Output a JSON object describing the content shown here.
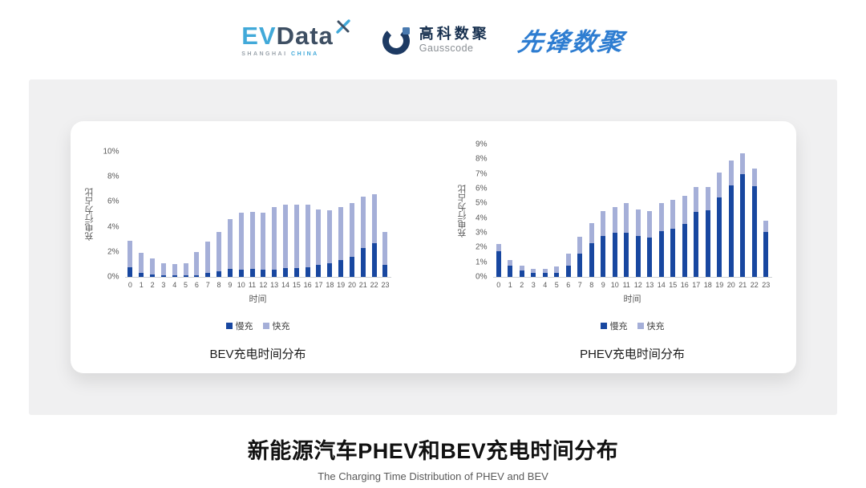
{
  "header": {
    "logos": {
      "evdata": {
        "accent_part": "EV",
        "dark_part": "Data",
        "tagline_left": "SHANGHAI",
        "tagline_right": "CHINA",
        "accent_color": "#41a9d9",
        "dark_color": "#3e4f63"
      },
      "gausscode": {
        "cn": "高科数聚",
        "en": "Gausscode",
        "mark_color": "#1d3a63",
        "accent_color": "#4a7ab0",
        "cn_color": "#17304f"
      },
      "pioneer": {
        "text": "先锋数聚",
        "color": "#2e7dd1"
      }
    }
  },
  "chart_data": [
    {
      "type": "bar",
      "stacked": true,
      "title": "BEV充电时间分布",
      "ylabel": "充电行为占比",
      "xlabel": "时间",
      "ymax": 10,
      "ytick_step": 2,
      "ytick_suffix": "%",
      "grid": false,
      "legend_position": "bottom",
      "categories": [
        "0",
        "1",
        "2",
        "3",
        "4",
        "5",
        "6",
        "7",
        "8",
        "9",
        "10",
        "11",
        "12",
        "13",
        "14",
        "15",
        "16",
        "17",
        "18",
        "19",
        "20",
        "21",
        "22",
        "23"
      ],
      "series": [
        {
          "name": "慢充",
          "color": "#1847a0",
          "values": [
            0.75,
            0.35,
            0.2,
            0.15,
            0.1,
            0.1,
            0.15,
            0.35,
            0.45,
            0.65,
            0.6,
            0.65,
            0.6,
            0.6,
            0.7,
            0.7,
            0.8,
            0.95,
            1.1,
            1.35,
            1.6,
            2.3,
            2.7,
            0.95
          ]
        },
        {
          "name": "快充",
          "color": "#a5afd8",
          "values": [
            2.15,
            1.55,
            1.3,
            0.95,
            0.9,
            1.0,
            1.85,
            2.45,
            3.15,
            3.95,
            4.5,
            4.55,
            4.5,
            5.0,
            5.1,
            5.05,
            5.0,
            4.45,
            4.2,
            4.25,
            4.3,
            4.1,
            3.9,
            2.65
          ]
        }
      ]
    },
    {
      "type": "bar",
      "stacked": true,
      "title": "PHEV充电时间分布",
      "ylabel": "充电行为占比",
      "xlabel": "时间",
      "ymax": 9,
      "ytick_step": 1,
      "ytick_suffix": "%",
      "grid": false,
      "legend_position": "bottom",
      "categories": [
        "0",
        "1",
        "2",
        "3",
        "4",
        "5",
        "6",
        "7",
        "8",
        "9",
        "10",
        "11",
        "12",
        "13",
        "14",
        "15",
        "16",
        "17",
        "18",
        "19",
        "20",
        "21",
        "22",
        "23"
      ],
      "series": [
        {
          "name": "慢充",
          "color": "#1847a0",
          "values": [
            1.75,
            0.75,
            0.45,
            0.25,
            0.25,
            0.3,
            0.75,
            1.6,
            2.3,
            2.8,
            3.0,
            3.0,
            2.8,
            2.65,
            3.1,
            3.3,
            3.6,
            4.4,
            4.55,
            5.4,
            6.2,
            7.0,
            6.15,
            3.05
          ]
        },
        {
          "name": "快充",
          "color": "#a5afd8",
          "values": [
            0.5,
            0.4,
            0.3,
            0.3,
            0.3,
            0.4,
            0.85,
            1.15,
            1.35,
            1.7,
            1.75,
            2.0,
            1.8,
            1.85,
            1.9,
            1.95,
            1.9,
            1.7,
            1.55,
            1.7,
            1.7,
            1.4,
            1.2,
            0.75
          ]
        }
      ]
    }
  ],
  "footer": {
    "title": "新能源汽车PHEV和BEV充电时间分布",
    "subtitle": "The Charging Time Distribution of PHEV and BEV"
  }
}
